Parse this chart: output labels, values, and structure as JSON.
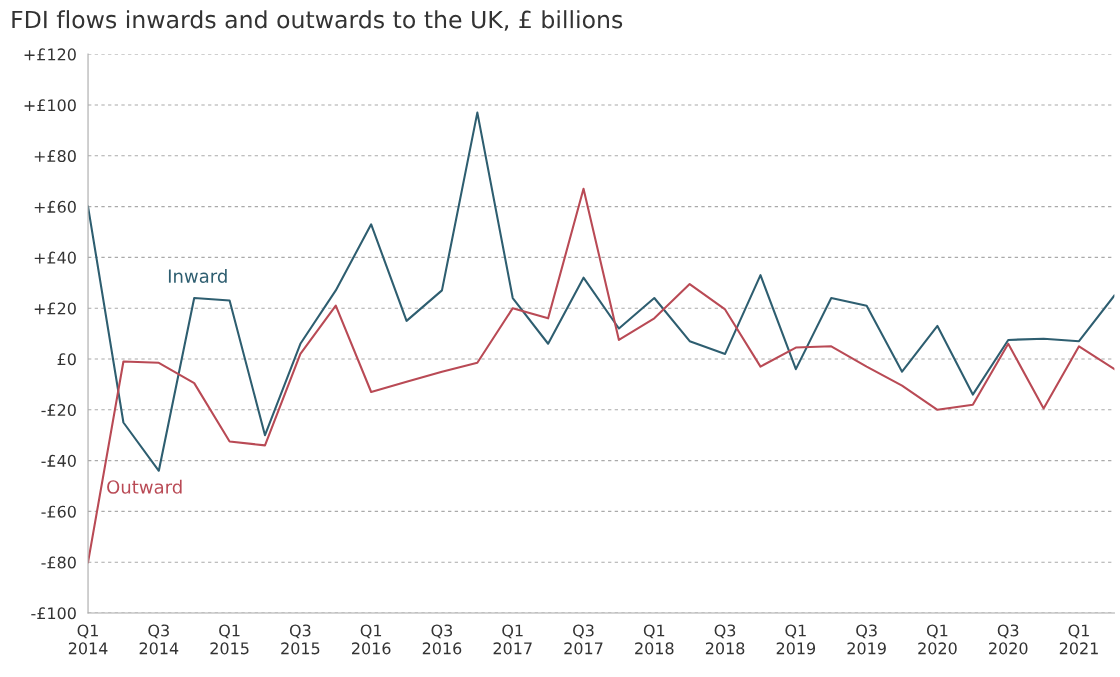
{
  "chart_data": {
    "type": "line",
    "title": "FDI flows inwards and outwards to the UK, £ billions",
    "categories": [
      "Q1\n2014",
      null,
      "Q3\n2014",
      null,
      "Q1\n2015",
      null,
      "Q3\n2015",
      null,
      "Q1\n2016",
      null,
      "Q3\n2016",
      null,
      "Q1\n2017",
      null,
      "Q3\n2017",
      null,
      "Q1\n2018",
      null,
      "Q3\n2018",
      null,
      "Q1\n2019",
      null,
      "Q3\n2019",
      null,
      "Q1\n2020",
      null,
      "Q3\n2020",
      null,
      "Q1\n2021",
      null
    ],
    "series": [
      {
        "name": "Inward",
        "color": "#2e5e70",
        "values": [
          60,
          -25,
          -44,
          24,
          23,
          -30,
          6,
          27,
          53,
          15,
          27,
          97,
          24,
          6,
          32,
          12,
          24,
          7,
          2,
          33,
          -4,
          24,
          21,
          -5,
          13,
          -14,
          7.5,
          8,
          7,
          25
        ]
      },
      {
        "name": "Outward",
        "color": "#b94a55",
        "values": [
          -80,
          -1,
          -1.5,
          -9.5,
          -32.5,
          -34,
          2,
          21,
          -13,
          -9,
          -5,
          -1.5,
          20,
          16,
          67,
          7.5,
          16,
          29.5,
          19.5,
          -3,
          4.5,
          5,
          -3,
          -10.5,
          -20,
          -18,
          6,
          -19.5,
          5,
          -4
        ]
      }
    ],
    "ylim": [
      -100,
      120
    ],
    "yticks": [
      {
        "value": -100,
        "label": "-£100"
      },
      {
        "value": -80,
        "label": "-£80"
      },
      {
        "value": -60,
        "label": "-£60"
      },
      {
        "value": -40,
        "label": "-£40"
      },
      {
        "value": -20,
        "label": "-£20"
      },
      {
        "value": 0,
        "label": "£0"
      },
      {
        "value": 20,
        "label": "+£20"
      },
      {
        "value": 40,
        "label": "+£40"
      },
      {
        "value": 60,
        "label": "+£60"
      },
      {
        "value": 80,
        "label": "+£80"
      },
      {
        "value": 100,
        "label": "+£100"
      },
      {
        "value": 120,
        "label": "+£120"
      }
    ],
    "grid": "y",
    "legend": false,
    "marker": "none",
    "line_style": "solid"
  }
}
